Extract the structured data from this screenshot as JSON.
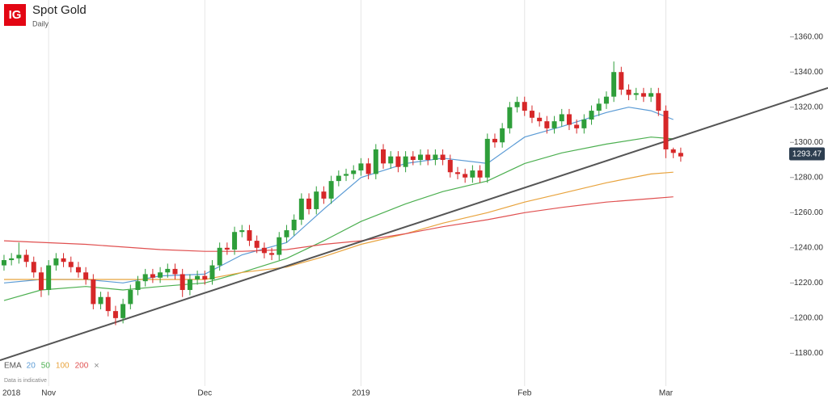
{
  "chart_data": {
    "type": "candlestick",
    "logo": "IG",
    "title": "Spot Gold",
    "subtitle": "Daily",
    "categories": [
      null,
      "2018",
      null,
      null,
      null,
      null,
      "Nov",
      null,
      null,
      null,
      null,
      null,
      null,
      null,
      null,
      null,
      null,
      null,
      null,
      null,
      null,
      null,
      null,
      null,
      null,
      null,
      null,
      "Dec",
      null,
      null,
      null,
      null,
      null,
      null,
      null,
      null,
      null,
      null,
      null,
      null,
      null,
      null,
      null,
      null,
      null,
      null,
      null,
      null,
      "2019",
      null,
      null,
      null,
      null,
      null,
      null,
      null,
      null,
      null,
      null,
      null,
      null,
      null,
      null,
      null,
      null,
      null,
      null,
      null,
      null,
      null,
      "Feb",
      null,
      null,
      null,
      null,
      null,
      null,
      null,
      null,
      null,
      null,
      null,
      null,
      null,
      null,
      null,
      null,
      null,
      null,
      "Mar",
      null,
      null
    ],
    "open": [
      1230,
      1233,
      1234,
      1236,
      1232,
      1226,
      1216,
      1230,
      1234,
      1232,
      1229,
      1226,
      1222,
      1208,
      1212,
      1204,
      1200,
      1208,
      1216,
      1221,
      1225,
      1223,
      1226,
      1228,
      1225,
      1216,
      1222,
      1224,
      1222,
      1230,
      1240,
      1239,
      1249,
      1250,
      1244,
      1240,
      1237,
      1236,
      1246,
      1250,
      1256,
      1268,
      1262,
      1272,
      1268,
      1278,
      1281,
      1282,
      1284,
      1288,
      1282,
      1296,
      1288,
      1292,
      1286,
      1292,
      1290,
      1293,
      1290,
      1293,
      1290,
      1283,
      1282,
      1280,
      1284,
      1280,
      1302,
      1300,
      1308,
      1320,
      1323,
      1318,
      1314,
      1312,
      1308,
      1312,
      1316,
      1310,
      1308,
      1313,
      1318,
      1322,
      1326,
      1340,
      1330,
      1327,
      1328,
      1326,
      1328,
      1318,
      1296,
      1294
    ],
    "high": [
      1236,
      1237,
      1243,
      1239,
      1235,
      1229,
      1233,
      1237,
      1237,
      1235,
      1232,
      1229,
      1225,
      1215,
      1215,
      1207,
      1211,
      1219,
      1224,
      1228,
      1228,
      1229,
      1231,
      1231,
      1228,
      1225,
      1227,
      1227,
      1233,
      1243,
      1243,
      1252,
      1253,
      1253,
      1247,
      1243,
      1240,
      1249,
      1253,
      1259,
      1271,
      1271,
      1275,
      1275,
      1281,
      1284,
      1285,
      1287,
      1291,
      1291,
      1299,
      1299,
      1295,
      1295,
      1295,
      1295,
      1296,
      1296,
      1296,
      1296,
      1293,
      1286,
      1285,
      1287,
      1287,
      1305,
      1305,
      1311,
      1323,
      1326,
      1326,
      1321,
      1317,
      1315,
      1315,
      1319,
      1319,
      1313,
      1316,
      1321,
      1325,
      1329,
      1346,
      1343,
      1333,
      1331,
      1331,
      1331,
      1331,
      1321,
      1297,
      1297
    ],
    "low": [
      1227,
      1230,
      1231,
      1229,
      1223,
      1212,
      1213,
      1227,
      1229,
      1226,
      1223,
      1219,
      1205,
      1205,
      1201,
      1196,
      1197,
      1205,
      1213,
      1218,
      1220,
      1220,
      1223,
      1222,
      1212,
      1213,
      1219,
      1219,
      1219,
      1227,
      1236,
      1236,
      1246,
      1241,
      1237,
      1234,
      1233,
      1233,
      1243,
      1247,
      1253,
      1259,
      1259,
      1265,
      1265,
      1275,
      1278,
      1279,
      1281,
      1279,
      1279,
      1285,
      1285,
      1283,
      1283,
      1287,
      1287,
      1287,
      1287,
      1287,
      1280,
      1279,
      1277,
      1277,
      1277,
      1277,
      1297,
      1297,
      1305,
      1317,
      1315,
      1311,
      1309,
      1305,
      1305,
      1309,
      1307,
      1305,
      1305,
      1310,
      1315,
      1319,
      1323,
      1327,
      1324,
      1324,
      1323,
      1323,
      1315,
      1291,
      1291,
      1289
    ],
    "close": [
      1233,
      1234,
      1236,
      1232,
      1226,
      1216,
      1230,
      1234,
      1232,
      1229,
      1226,
      1222,
      1208,
      1212,
      1204,
      1200,
      1208,
      1216,
      1221,
      1225,
      1223,
      1226,
      1228,
      1225,
      1216,
      1222,
      1224,
      1222,
      1230,
      1240,
      1239,
      1249,
      1250,
      1244,
      1240,
      1237,
      1236,
      1246,
      1250,
      1256,
      1268,
      1262,
      1272,
      1268,
      1278,
      1281,
      1282,
      1284,
      1288,
      1282,
      1296,
      1288,
      1292,
      1286,
      1292,
      1290,
      1293,
      1290,
      1293,
      1290,
      1283,
      1282,
      1280,
      1284,
      1280,
      1302,
      1300,
      1308,
      1320,
      1323,
      1318,
      1314,
      1312,
      1308,
      1312,
      1316,
      1310,
      1308,
      1313,
      1318,
      1322,
      1326,
      1340,
      1330,
      1327,
      1328,
      1326,
      1328,
      1318,
      1296,
      1294,
      1292
    ],
    "up_color": "#2e9e3a",
    "down_color": "#d62728",
    "series": [
      {
        "name": "20",
        "color": "#5b9bd5",
        "x": [
          0,
          5,
          11,
          16,
          21,
          27,
          32,
          38,
          43,
          48,
          54,
          59,
          65,
          70,
          75,
          81,
          84,
          87,
          90
        ],
        "values": [
          1220,
          1222,
          1222,
          1220,
          1224,
          1225,
          1236,
          1243,
          1262,
          1280,
          1288,
          1291,
          1288,
          1303,
          1309,
          1317,
          1320,
          1318,
          1313
        ]
      },
      {
        "name": "50",
        "color": "#4caf50",
        "x": [
          0,
          5,
          11,
          16,
          21,
          27,
          32,
          38,
          43,
          48,
          54,
          59,
          65,
          70,
          75,
          81,
          87,
          90
        ],
        "values": [
          1210,
          1216,
          1218,
          1216,
          1218,
          1220,
          1226,
          1234,
          1244,
          1255,
          1265,
          1272,
          1278,
          1288,
          1294,
          1299,
          1303,
          1302
        ]
      },
      {
        "name": "100",
        "color": "#e8a33d",
        "x": [
          0,
          11,
          21,
          27,
          32,
          38,
          43,
          48,
          54,
          59,
          65,
          70,
          75,
          81,
          87,
          90
        ],
        "values": [
          1222,
          1222,
          1222,
          1222,
          1226,
          1229,
          1235,
          1242,
          1248,
          1254,
          1260,
          1266,
          1271,
          1277,
          1282,
          1283
        ]
      },
      {
        "name": "200",
        "color": "#e05050",
        "x": [
          0,
          11,
          21,
          27,
          32,
          38,
          43,
          48,
          54,
          59,
          65,
          70,
          75,
          81,
          87,
          90
        ],
        "values": [
          1244,
          1242,
          1239,
          1238,
          1238,
          1239,
          1242,
          1244,
          1248,
          1252,
          1256,
          1260,
          1263,
          1266,
          1268,
          1269
        ]
      }
    ],
    "trendline": {
      "color": "#555555",
      "x": [
        -0.54,
        110.8
      ],
      "values": [
        1176,
        1331
      ]
    },
    "last_price": 1293.47,
    "last_price_color": "#2d3e50",
    "xlim": [
      -0.54,
      110.8
    ],
    "ylim": [
      1165,
      1381
    ],
    "yticks": [
      {
        "value": 1180,
        "label": "1180.00"
      },
      {
        "value": 1200,
        "label": "1200.00"
      },
      {
        "value": 1220,
        "label": "1220.00"
      },
      {
        "value": 1240,
        "label": "1240.00"
      },
      {
        "value": 1260,
        "label": "1260.00"
      },
      {
        "value": 1280,
        "label": "1280.00"
      },
      {
        "value": 1300,
        "label": "1300.00"
      },
      {
        "value": 1320,
        "label": "1320.00"
      },
      {
        "value": 1340,
        "label": "1340.00"
      },
      {
        "value": 1360,
        "label": "1360.00"
      }
    ],
    "legend_label": "EMA",
    "legend_close": "×",
    "note": "Data is indicative"
  }
}
